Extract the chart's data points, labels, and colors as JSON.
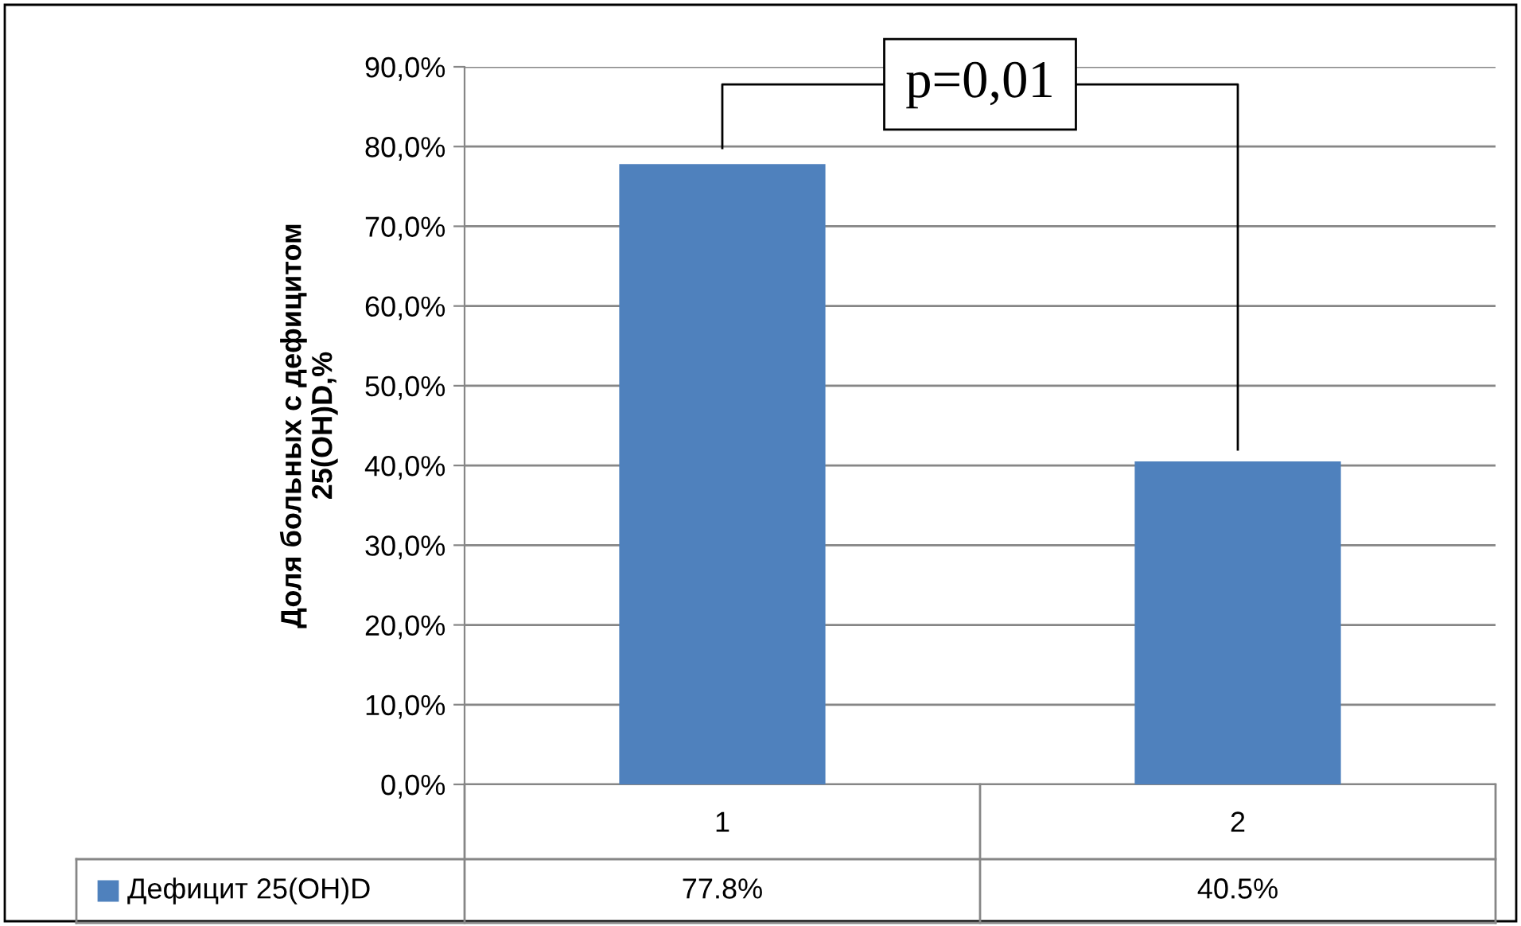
{
  "chart_data": {
    "type": "bar",
    "ylabel": "Доля больных с дефицитом\n25(OH)D,%",
    "categories": [
      "1",
      "2"
    ],
    "series": [
      {
        "name": "Дефицит 25(OH)D",
        "color": "#4f81bd",
        "values": [
          77.8,
          40.5
        ],
        "value_labels": [
          "77.8%",
          "40.5%"
        ]
      }
    ],
    "ylim": [
      0,
      90
    ],
    "yticks": [
      {
        "value": 0,
        "label": "0,0%"
      },
      {
        "value": 10,
        "label": "10,0%"
      },
      {
        "value": 20,
        "label": "20,0%"
      },
      {
        "value": 30,
        "label": "30,0%"
      },
      {
        "value": 40,
        "label": "40,0%"
      },
      {
        "value": 50,
        "label": "50,0%"
      },
      {
        "value": 60,
        "label": "60,0%"
      },
      {
        "value": 70,
        "label": "70,0%"
      },
      {
        "value": 80,
        "label": "80,0%"
      },
      {
        "value": 90,
        "label": "90,0%"
      }
    ],
    "grid": "y",
    "legend": "bottom",
    "annotations": [
      "p=0,01"
    ]
  }
}
